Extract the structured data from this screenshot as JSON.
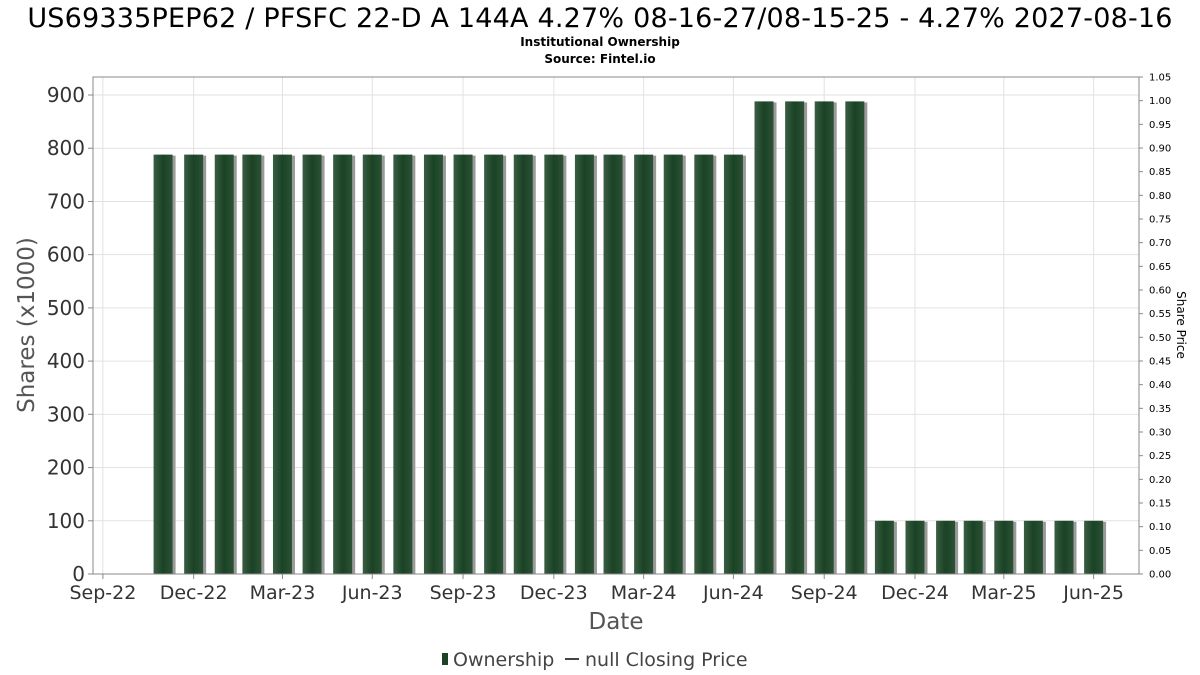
{
  "title": "US69335PEP62 / PFSFC 22-D A 144A 4.27% 08-16-27/08-15-25 - 4.27% 2027-08-16",
  "subtitle": "Institutional Ownership",
  "source": "Source: Fintel.io",
  "chart_data": {
    "type": "bar",
    "xlabel": "Date",
    "ylabel": "Shares (x1000)",
    "ylabel_right": "Share Price",
    "ylim": [
      0,
      900
    ],
    "y_ticks": [
      "0",
      "100",
      "200",
      "300",
      "400",
      "500",
      "600",
      "700",
      "800",
      "900"
    ],
    "ylim_right": [
      0,
      1.05
    ],
    "y_ticks_right": [
      "0.00",
      "0.05",
      "0.10",
      "0.15",
      "0.20",
      "0.25",
      "0.30",
      "0.35",
      "0.40",
      "0.45",
      "0.50",
      "0.55",
      "0.60",
      "0.65",
      "0.70",
      "0.75",
      "0.80",
      "0.85",
      "0.90",
      "0.95",
      "1.00",
      "1.05"
    ],
    "x_range": [
      "2022-09-20",
      "2025-08-15"
    ],
    "x_ticks": [
      {
        "date": "2022-09-30",
        "label": "Sep-22"
      },
      {
        "date": "2022-12-31",
        "label": "Dec-22"
      },
      {
        "date": "2023-03-31",
        "label": "Mar-23"
      },
      {
        "date": "2023-06-30",
        "label": "Jun-23"
      },
      {
        "date": "2023-09-30",
        "label": "Sep-23"
      },
      {
        "date": "2023-12-31",
        "label": "Dec-23"
      },
      {
        "date": "2024-03-31",
        "label": "Mar-24"
      },
      {
        "date": "2024-06-30",
        "label": "Jun-24"
      },
      {
        "date": "2024-09-30",
        "label": "Sep-24"
      },
      {
        "date": "2024-12-31",
        "label": "Dec-24"
      },
      {
        "date": "2025-03-31",
        "label": "Mar-25"
      },
      {
        "date": "2025-06-30",
        "label": "Jun-25"
      }
    ],
    "grid": true,
    "legend_position": "bottom-center",
    "series": [
      {
        "name": "Ownership",
        "color": "#1a4225",
        "points": [
          {
            "date": "2022-11-30",
            "value": 788
          },
          {
            "date": "2022-12-31",
            "value": 788
          },
          {
            "date": "2023-01-31",
            "value": 788
          },
          {
            "date": "2023-02-28",
            "value": 788
          },
          {
            "date": "2023-03-31",
            "value": 788
          },
          {
            "date": "2023-04-30",
            "value": 788
          },
          {
            "date": "2023-05-31",
            "value": 788
          },
          {
            "date": "2023-06-30",
            "value": 788
          },
          {
            "date": "2023-07-31",
            "value": 788
          },
          {
            "date": "2023-08-31",
            "value": 788
          },
          {
            "date": "2023-09-30",
            "value": 788
          },
          {
            "date": "2023-10-31",
            "value": 788
          },
          {
            "date": "2023-11-30",
            "value": 788
          },
          {
            "date": "2023-12-31",
            "value": 788
          },
          {
            "date": "2024-01-31",
            "value": 788
          },
          {
            "date": "2024-02-29",
            "value": 788
          },
          {
            "date": "2024-03-31",
            "value": 788
          },
          {
            "date": "2024-04-30",
            "value": 788
          },
          {
            "date": "2024-05-31",
            "value": 788
          },
          {
            "date": "2024-06-30",
            "value": 788
          },
          {
            "date": "2024-07-31",
            "value": 888
          },
          {
            "date": "2024-08-31",
            "value": 888
          },
          {
            "date": "2024-09-30",
            "value": 888
          },
          {
            "date": "2024-10-31",
            "value": 888
          },
          {
            "date": "2024-11-30",
            "value": 100
          },
          {
            "date": "2024-12-31",
            "value": 100
          },
          {
            "date": "2025-01-31",
            "value": 100
          },
          {
            "date": "2025-02-28",
            "value": 100
          },
          {
            "date": "2025-03-31",
            "value": 100
          },
          {
            "date": "2025-04-30",
            "value": 100
          },
          {
            "date": "2025-05-31",
            "value": 100
          },
          {
            "date": "2025-06-30",
            "value": 100
          }
        ]
      },
      {
        "name": "null Closing Price",
        "color": "#444444",
        "points": []
      }
    ]
  }
}
